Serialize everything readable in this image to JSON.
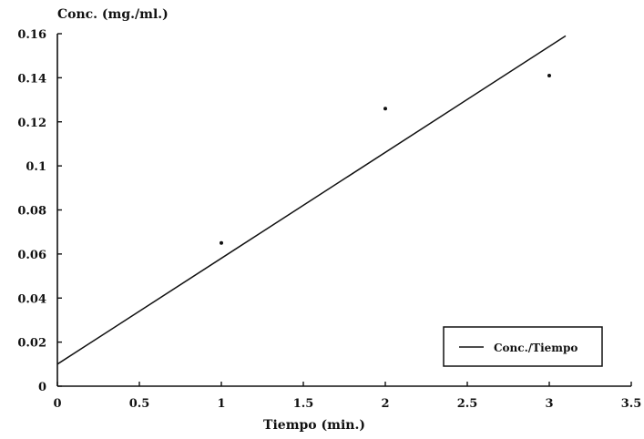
{
  "chart_data": {
    "type": "scatter",
    "title": "",
    "xlabel": "Tiempo (min.)",
    "ylabel": "Conc. (mg./ml.)",
    "xlim": [
      0,
      3.5
    ],
    "ylim": [
      0,
      0.16
    ],
    "x_ticks": [
      0,
      0.5,
      1,
      1.5,
      2,
      2.5,
      3,
      3.5
    ],
    "x_tick_labels": [
      "0",
      "0.5",
      "1",
      "1.5",
      "2",
      "2.5",
      "3",
      "3.5"
    ],
    "y_ticks": [
      0,
      0.02,
      0.04,
      0.06,
      0.08,
      0.1,
      0.12,
      0.14,
      0.16
    ],
    "y_tick_labels": [
      "0",
      "0.02",
      "0.04",
      "0.06",
      "0.08",
      "0.1",
      "0.12",
      "0.14",
      "0.16"
    ],
    "grid": false,
    "legend_position": "bottom-right",
    "points": [
      {
        "x": 1,
        "y": 0.065
      },
      {
        "x": 2,
        "y": 0.126
      },
      {
        "x": 3,
        "y": 0.141
      }
    ],
    "series": [
      {
        "name": "Conc./Tiempo",
        "kind": "trend-line",
        "line_points": [
          {
            "x": 0,
            "y": 0.01
          },
          {
            "x": 3.1,
            "y": 0.159
          }
        ]
      }
    ],
    "colors": {
      "ink": "#111111",
      "background": "#ffffff"
    }
  }
}
